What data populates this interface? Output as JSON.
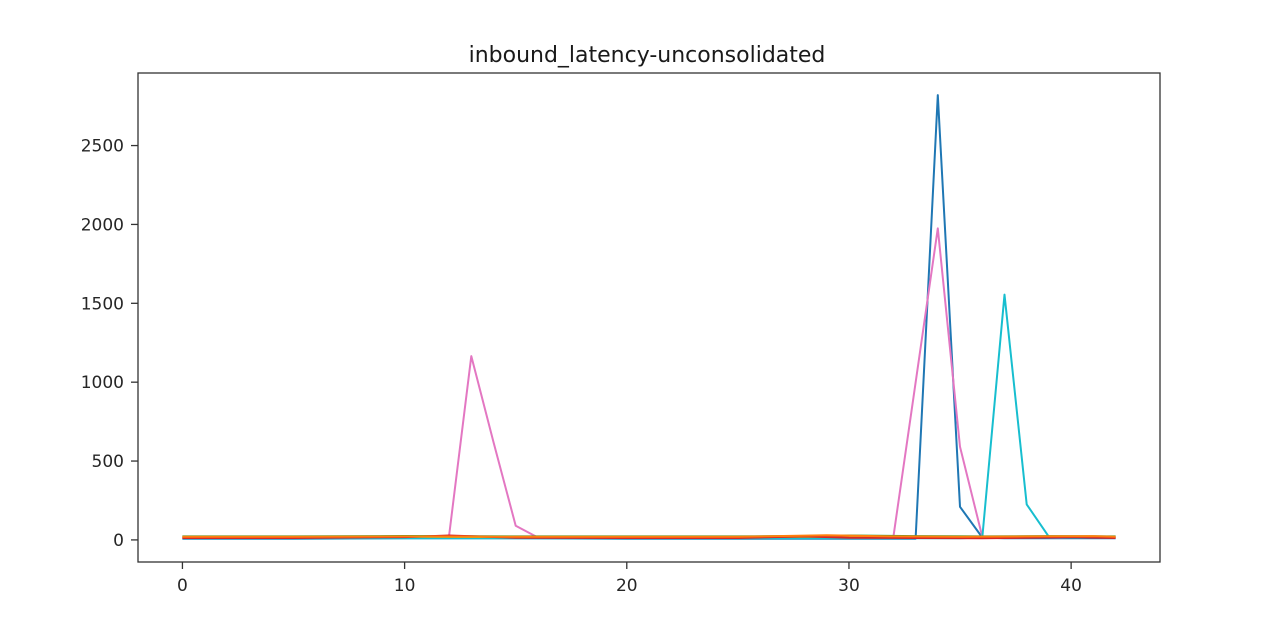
{
  "chart_data": {
    "type": "line",
    "title": "inbound_latency-unconsolidated",
    "xlabel": "",
    "ylabel": "",
    "xlim": [
      -2,
      44
    ],
    "ylim": [
      -140,
      2960
    ],
    "xticks": [
      0,
      10,
      20,
      30,
      40
    ],
    "yticks": [
      0,
      500,
      1000,
      1500,
      2000,
      2500
    ],
    "grid": false,
    "legend": "none",
    "series": [
      {
        "color": "#1f77b4",
        "x": [
          0,
          5,
          10,
          15,
          20,
          25,
          30,
          32,
          33,
          34,
          35,
          36,
          37,
          40,
          42
        ],
        "y": [
          8,
          8,
          10,
          10,
          8,
          8,
          8,
          8,
          8,
          2820,
          210,
          15,
          10,
          10,
          10
        ]
      },
      {
        "color": "#e377c2",
        "x": [
          0,
          5,
          10,
          12,
          13,
          14,
          15,
          16,
          20,
          25,
          30,
          32,
          34,
          35,
          36,
          37,
          40,
          42
        ],
        "y": [
          15,
          15,
          20,
          22,
          1165,
          620,
          90,
          15,
          15,
          15,
          15,
          20,
          1975,
          590,
          20,
          15,
          15,
          15
        ]
      },
      {
        "color": "#17becf",
        "x": [
          0,
          10,
          20,
          30,
          35,
          36,
          37,
          38,
          39,
          40,
          42
        ],
        "y": [
          10,
          10,
          10,
          10,
          10,
          15,
          1555,
          225,
          20,
          15,
          15
        ]
      },
      {
        "color": "#2ca02c",
        "x": [
          0,
          5,
          10,
          15,
          20,
          25,
          28,
          30,
          33,
          36,
          39,
          42
        ],
        "y": [
          22,
          22,
          25,
          22,
          22,
          22,
          25,
          28,
          24,
          22,
          24,
          22
        ]
      },
      {
        "color": "#bcbd22",
        "x": [
          0,
          5,
          10,
          15,
          20,
          25,
          30,
          35,
          40,
          42
        ],
        "y": [
          18,
          18,
          20,
          18,
          18,
          18,
          20,
          18,
          20,
          18
        ]
      },
      {
        "color": "#d62728",
        "x": [
          0,
          5,
          10,
          12,
          15,
          20,
          25,
          28,
          30,
          33,
          36,
          40,
          42
        ],
        "y": [
          12,
          12,
          18,
          28,
          14,
          12,
          12,
          22,
          14,
          12,
          10,
          18,
          12
        ]
      },
      {
        "color": "#ff7f0e",
        "x": [
          0,
          5,
          10,
          15,
          20,
          25,
          29,
          32,
          35,
          38,
          41,
          42
        ],
        "y": [
          20,
          20,
          22,
          20,
          20,
          20,
          30,
          22,
          20,
          22,
          24,
          20
        ]
      }
    ]
  }
}
